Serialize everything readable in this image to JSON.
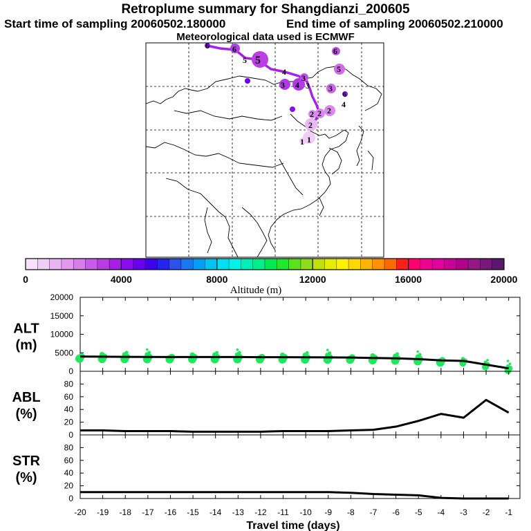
{
  "header": {
    "title": "Retroplume summary for Shangdianzi_200605",
    "start_label": "Start time of sampling 20060502.180000",
    "end_label": "End time of sampling 20060502.210000",
    "met_label": "Meteorological data used is ECMWF"
  },
  "colorbar": {
    "label": "Altitude (m)",
    "ticks": [
      "0",
      "4000",
      "8000",
      "12000",
      "16000",
      "20000"
    ],
    "colors": [
      "#f6e3fb",
      "#f0cdf6",
      "#e9b4f2",
      "#e19aee",
      "#d77de9",
      "#c95ce6",
      "#b93be4",
      "#a51fe6",
      "#8a0cf0",
      "#6a00ee",
      "#3f00f0",
      "#2424ee",
      "#2a52ee",
      "#1a78f2",
      "#00a0f6",
      "#00c4f2",
      "#00e0f4",
      "#00f2e6",
      "#00f0b6",
      "#00ee8a",
      "#00ea56",
      "#20e82a",
      "#5ae21c",
      "#90dc18",
      "#c0e008",
      "#e6ee00",
      "#fff200",
      "#ffd800",
      "#ffb400",
      "#ff9200",
      "#ff6a00",
      "#ff1e1e",
      "#ff0070",
      "#f20094",
      "#e2009e",
      "#cc0096",
      "#b0008c",
      "#941884",
      "#78187a",
      "#5a186c"
    ]
  },
  "map": {
    "trajectory_labels": [
      "1",
      "1",
      "2",
      "2",
      "2",
      "2",
      "3",
      "3",
      "3",
      "3",
      "4",
      "4",
      "4",
      "5",
      "5",
      "5",
      "6",
      "6",
      "6",
      "6"
    ]
  },
  "chart_data": [
    {
      "type": "line",
      "name": "ALT",
      "ylabel": "ALT (m)",
      "ylabel_lines": [
        "ALT",
        "(m)"
      ],
      "x": [
        -20,
        -19,
        -18,
        -17,
        -16,
        -15,
        -14,
        -13,
        -12,
        -11,
        -10,
        -9,
        -8,
        -7,
        -6,
        -5,
        -4,
        -3,
        -2,
        -1
      ],
      "values": [
        4000,
        3950,
        3900,
        3880,
        3850,
        3850,
        3850,
        3850,
        3820,
        3800,
        3780,
        3760,
        3720,
        3600,
        3500,
        3300,
        2950,
        2800,
        1800,
        800
      ],
      "ylim": [
        0,
        20000
      ],
      "yticks": [
        "0",
        "5000",
        "10000",
        "15000",
        "20000"
      ],
      "yticks_vals": [
        0,
        5000,
        10000,
        15000,
        20000
      ],
      "scatter_color": "#1ee85c"
    },
    {
      "type": "line",
      "name": "ABL",
      "ylabel": "ABL (%)",
      "ylabel_lines": [
        "ABL",
        "(%)"
      ],
      "x": [
        -20,
        -19,
        -18,
        -17,
        -16,
        -15,
        -14,
        -13,
        -12,
        -11,
        -10,
        -9,
        -8,
        -7,
        -6,
        -5,
        -4,
        -3,
        -2,
        -1
      ],
      "values": [
        7,
        7,
        6,
        6,
        6,
        5,
        5,
        5,
        5,
        6,
        6,
        6,
        7,
        8,
        13,
        22,
        33,
        27,
        55,
        35
      ],
      "ylim": [
        0,
        100
      ],
      "yticks": [
        "0",
        "20",
        "40",
        "60",
        "80"
      ],
      "yticks_vals": [
        0,
        20,
        40,
        60,
        80
      ]
    },
    {
      "type": "line",
      "name": "STR",
      "ylabel": "STR (%)",
      "ylabel_lines": [
        "STR",
        "(%)"
      ],
      "x": [
        -20,
        -19,
        -18,
        -17,
        -16,
        -15,
        -14,
        -13,
        -12,
        -11,
        -10,
        -9,
        -8,
        -7,
        -6,
        -5,
        -4,
        -3,
        -2,
        -1
      ],
      "values": [
        10,
        10,
        10,
        10,
        10,
        10,
        10,
        10,
        10,
        10,
        10,
        10,
        9,
        7,
        6,
        5,
        1,
        0,
        0,
        0
      ],
      "ylim": [
        0,
        100
      ],
      "yticks": [
        "0",
        "20",
        "40",
        "60",
        "80"
      ],
      "yticks_vals": [
        0,
        20,
        40,
        60,
        80
      ]
    }
  ],
  "xaxis": {
    "label": "Travel time (days)",
    "ticks": [
      "-20",
      "-19",
      "-18",
      "-17",
      "-16",
      "-15",
      "-14",
      "-13",
      "-12",
      "-11",
      "-10",
      "-9",
      "-8",
      "-7",
      "-6",
      "-5",
      "-4",
      "-3",
      "-2",
      "-1"
    ],
    "tick_vals": [
      -20,
      -19,
      -18,
      -17,
      -16,
      -15,
      -14,
      -13,
      -12,
      -11,
      -10,
      -9,
      -8,
      -7,
      -6,
      -5,
      -4,
      -3,
      -2,
      -1
    ],
    "xlim": [
      -20,
      -0.5
    ]
  }
}
